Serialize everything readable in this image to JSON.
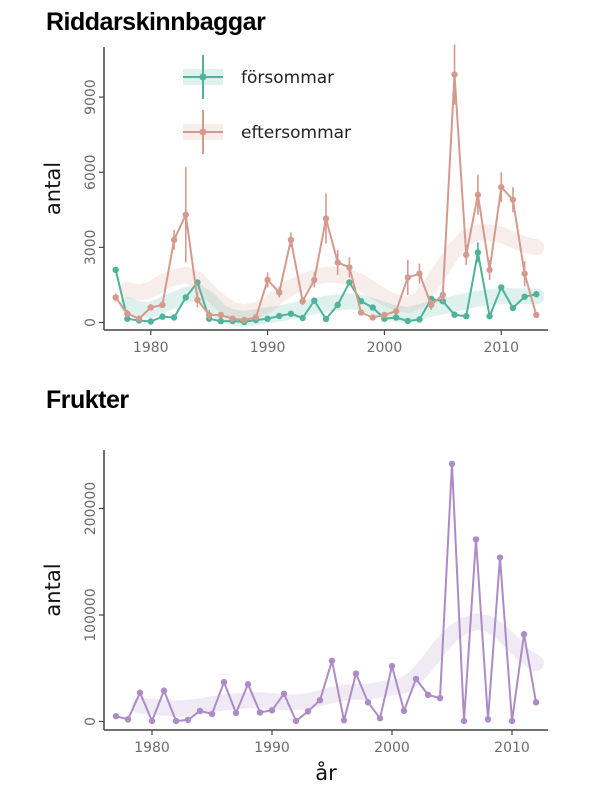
{
  "chart_data": [
    {
      "type": "line",
      "title": "Riddarskinnbaggar",
      "ylabel": "antal",
      "xlabel": "",
      "xlim": [
        1976,
        2014
      ],
      "ylim": [
        -300,
        11000
      ],
      "xticks": [
        1980,
        1990,
        2000,
        2010
      ],
      "yticks": [
        0,
        3000,
        6000,
        9000
      ],
      "legend_position": "top-left",
      "grid": false,
      "series": [
        {
          "name": "försommar",
          "color": "#4fb39a",
          "x": [
            1977,
            1978,
            1979,
            1980,
            1981,
            1982,
            1983,
            1984,
            1985,
            1986,
            1987,
            1988,
            1989,
            1990,
            1991,
            1992,
            1993,
            1994,
            1995,
            1996,
            1997,
            1998,
            1999,
            2000,
            2001,
            2002,
            2003,
            2004,
            2005,
            2006,
            2007,
            2008,
            2009,
            2010,
            2011,
            2012,
            2013
          ],
          "y": [
            2100,
            150,
            80,
            40,
            230,
            200,
            1000,
            1600,
            150,
            50,
            60,
            20,
            100,
            150,
            260,
            350,
            180,
            870,
            140,
            700,
            1600,
            850,
            600,
            150,
            200,
            60,
            120,
            940,
            850,
            310,
            250,
            2800,
            250,
            1400,
            580,
            1030,
            1130
          ],
          "err": [
            0,
            0,
            0,
            0,
            0,
            0,
            0,
            0,
            0,
            0,
            0,
            0,
            0,
            0,
            0,
            0,
            0,
            0,
            0,
            0,
            0,
            0,
            0,
            0,
            0,
            0,
            0,
            0,
            0,
            0,
            0,
            400,
            0,
            0,
            0,
            0,
            0
          ],
          "trend": [
            null,
            700,
            500,
            500,
            700,
            900,
            1100,
            1200,
            900,
            400,
            200,
            150,
            200,
            300,
            350,
            450,
            550,
            650,
            750,
            800,
            850,
            800,
            650,
            500,
            350,
            300,
            400,
            550,
            650,
            750,
            850,
            950,
            1000,
            1050,
            1050,
            1050,
            1050
          ]
        },
        {
          "name": "eftersommar",
          "color": "#d49a8e",
          "x": [
            1977,
            1978,
            1979,
            1980,
            1981,
            1982,
            1983,
            1984,
            1985,
            1986,
            1987,
            1988,
            1989,
            1990,
            1991,
            1992,
            1993,
            1994,
            1995,
            1996,
            1997,
            1998,
            1999,
            2000,
            2001,
            2002,
            2003,
            2004,
            2005,
            2006,
            2007,
            2008,
            2009,
            2010,
            2011,
            2012,
            2013
          ],
          "y": [
            1000,
            350,
            150,
            600,
            700,
            3300,
            4300,
            900,
            300,
            300,
            150,
            100,
            200,
            1700,
            1200,
            3300,
            850,
            1700,
            4150,
            2400,
            2200,
            400,
            200,
            300,
            450,
            1800,
            1950,
            700,
            1100,
            9900,
            2700,
            5100,
            2100,
            5400,
            4900,
            1950,
            300
          ],
          "err": [
            150,
            150,
            50,
            100,
            100,
            400,
            1900,
            300,
            200,
            100,
            50,
            50,
            100,
            300,
            200,
            300,
            150,
            300,
            1000,
            500,
            400,
            100,
            50,
            100,
            100,
            700,
            400,
            200,
            300,
            1200,
            400,
            800,
            400,
            600,
            500,
            500,
            100
          ],
          "trend": [
            null,
            1300,
            1200,
            1300,
            1600,
            1800,
            1900,
            1700,
            1200,
            800,
            500,
            400,
            500,
            700,
            1100,
            1400,
            1600,
            1800,
            1900,
            1900,
            1800,
            1600,
            1300,
            1000,
            800,
            700,
            900,
            1500,
            2200,
            2900,
            3400,
            3600,
            3600,
            3500,
            3300,
            3100,
            3000
          ]
        }
      ]
    },
    {
      "type": "line",
      "title": "Frukter",
      "ylabel": "antal",
      "xlabel": "år",
      "xlim": [
        1976,
        2013
      ],
      "ylim": [
        -8000,
        255000
      ],
      "xticks": [
        1980,
        1990,
        2000,
        2010
      ],
      "yticks": [
        0,
        100000,
        200000
      ],
      "grid": false,
      "series": [
        {
          "name": "",
          "color": "#ad8bc7",
          "x": [
            1977,
            1978,
            1979,
            1980,
            1981,
            1982,
            1983,
            1984,
            1985,
            1986,
            1987,
            1988,
            1989,
            1990,
            1991,
            1992,
            1993,
            1994,
            1995,
            1996,
            1997,
            1998,
            1999,
            2000,
            2001,
            2002,
            2003,
            2004,
            2005,
            2006,
            2007,
            2008,
            2009,
            2010,
            2011,
            2012
          ],
          "y": [
            5000,
            2000,
            27000,
            500,
            29000,
            500,
            1500,
            10000,
            7000,
            37000,
            8000,
            35000,
            8500,
            10500,
            26000,
            500,
            9500,
            20000,
            57000,
            1000,
            45000,
            18000,
            3000,
            52000,
            10000,
            40000,
            25000,
            22000,
            242000,
            500,
            171000,
            2000,
            154000,
            500,
            82000,
            18000
          ],
          "trend": [
            null,
            null,
            15000,
            14000,
            13000,
            12000,
            13000,
            14000,
            16000,
            18000,
            19000,
            20000,
            20000,
            19000,
            18000,
            18000,
            19000,
            22000,
            25000,
            27000,
            28000,
            28000,
            30000,
            32000,
            34000,
            42000,
            55000,
            70000,
            82000,
            90000,
            94000,
            92000,
            85000,
            74000,
            62000,
            55000
          ]
        }
      ]
    }
  ]
}
